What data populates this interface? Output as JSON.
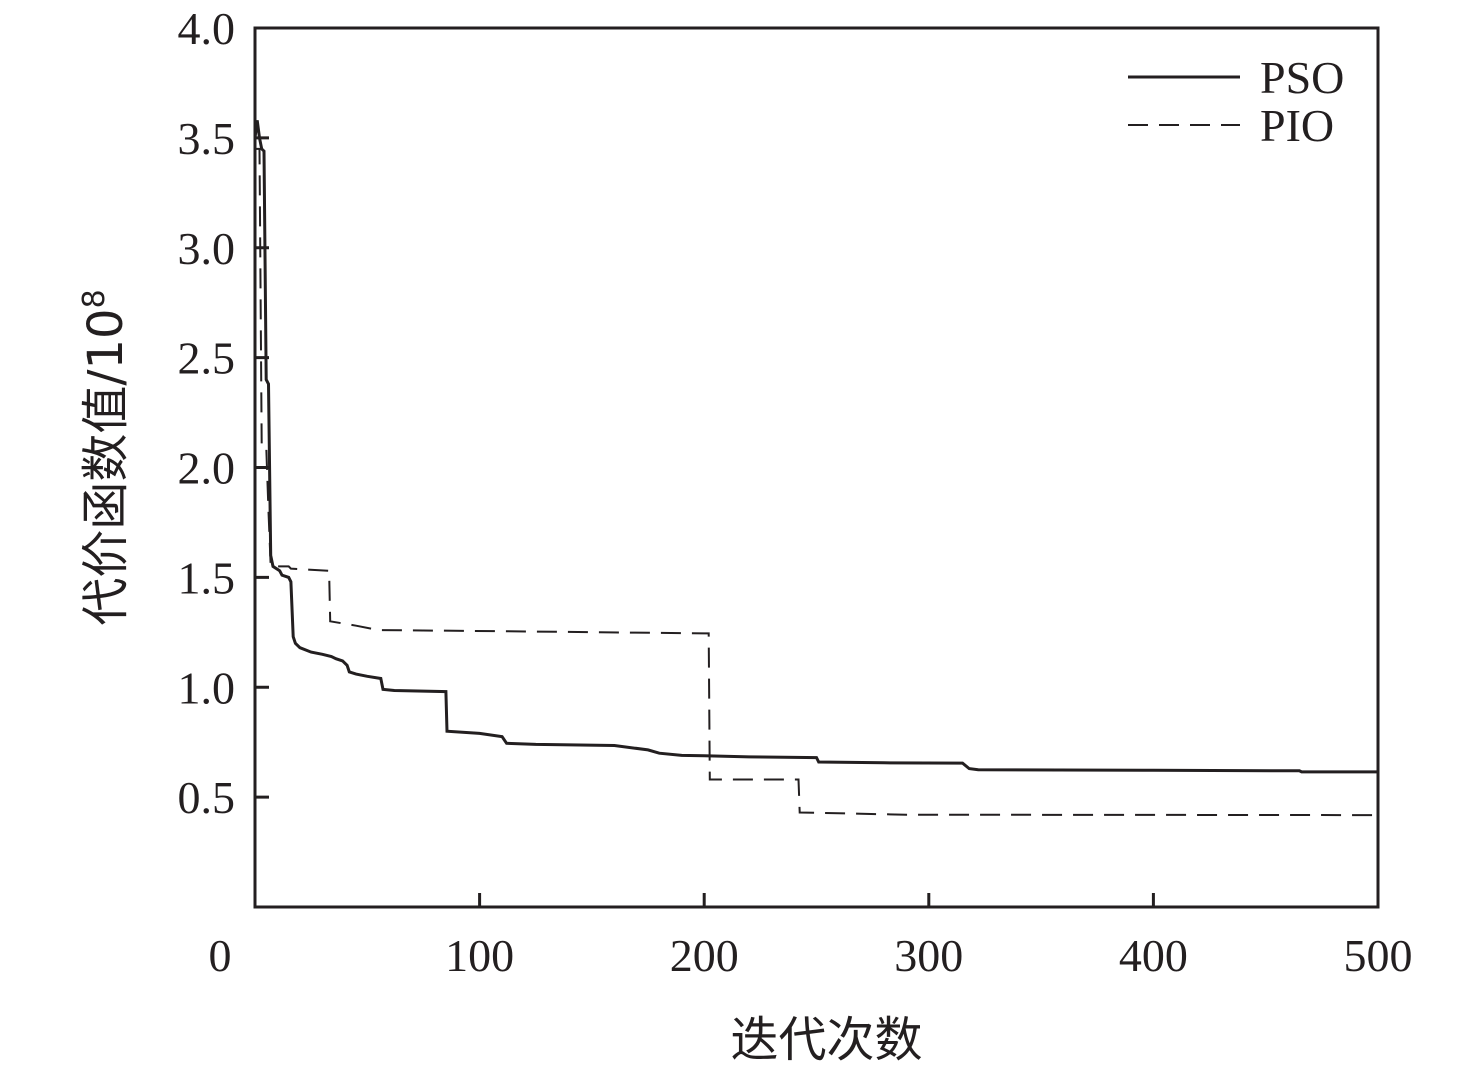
{
  "chart_data": {
    "type": "line",
    "title": "",
    "xlabel": "迭代次数",
    "ylabel_main": "代价函数值/10",
    "ylabel_exponent": "8",
    "xlim": [
      0,
      500
    ],
    "ylim": [
      0,
      4.0
    ],
    "x_ticks": [
      0,
      100,
      200,
      300,
      400,
      500
    ],
    "x_tick_labels": [
      "0",
      "100",
      "200",
      "300",
      "400",
      "500"
    ],
    "y_ticks": [
      0.5,
      1.0,
      1.5,
      2.0,
      2.5,
      3.0,
      3.5,
      4.0
    ],
    "y_tick_labels": [
      "0.5",
      "1.0",
      "1.5",
      "2.0",
      "2.5",
      "3.0",
      "3.5",
      "4.0"
    ],
    "grid": false,
    "legend_position": "top-right",
    "series": [
      {
        "name": "PSO",
        "style": "solid",
        "color": "#231f20",
        "points": [
          [
            0,
            3.5
          ],
          [
            1,
            3.58
          ],
          [
            2,
            3.5
          ],
          [
            3,
            3.45
          ],
          [
            4,
            3.44
          ],
          [
            5,
            2.4
          ],
          [
            6,
            2.38
          ],
          [
            7,
            1.6
          ],
          [
            8,
            1.55
          ],
          [
            11,
            1.53
          ],
          [
            12,
            1.51
          ],
          [
            15,
            1.5
          ],
          [
            16,
            1.48
          ],
          [
            17,
            1.23
          ],
          [
            18,
            1.2
          ],
          [
            20,
            1.18
          ],
          [
            25,
            1.16
          ],
          [
            30,
            1.15
          ],
          [
            34,
            1.14
          ],
          [
            36,
            1.13
          ],
          [
            39,
            1.12
          ],
          [
            41,
            1.1
          ],
          [
            42,
            1.07
          ],
          [
            45,
            1.06
          ],
          [
            50,
            1.05
          ],
          [
            56,
            1.04
          ],
          [
            57,
            0.99
          ],
          [
            62,
            0.985
          ],
          [
            85,
            0.98
          ],
          [
            85.5,
            0.8
          ],
          [
            100,
            0.79
          ],
          [
            110,
            0.775
          ],
          [
            112,
            0.745
          ],
          [
            125,
            0.74
          ],
          [
            160,
            0.735
          ],
          [
            175,
            0.715
          ],
          [
            180,
            0.7
          ],
          [
            190,
            0.69
          ],
          [
            200,
            0.688
          ],
          [
            220,
            0.683
          ],
          [
            250,
            0.68
          ],
          [
            251,
            0.66
          ],
          [
            280,
            0.656
          ],
          [
            315,
            0.655
          ],
          [
            318,
            0.63
          ],
          [
            322,
            0.625
          ],
          [
            400,
            0.622
          ],
          [
            465,
            0.62
          ],
          [
            466,
            0.615
          ],
          [
            500,
            0.615
          ]
        ]
      },
      {
        "name": "PIO",
        "style": "dashed",
        "color": "#231f20",
        "points": [
          [
            0,
            3.45
          ],
          [
            2,
            3.45
          ],
          [
            3,
            2.1
          ],
          [
            5,
            2.1
          ],
          [
            6,
            1.8
          ],
          [
            7,
            1.55
          ],
          [
            15,
            1.55
          ],
          [
            16,
            1.54
          ],
          [
            33,
            1.53
          ],
          [
            33.5,
            1.3
          ],
          [
            45,
            1.28
          ],
          [
            55,
            1.26
          ],
          [
            110,
            1.255
          ],
          [
            200,
            1.245
          ],
          [
            202,
            1.245
          ],
          [
            202.5,
            0.58
          ],
          [
            242,
            0.58
          ],
          [
            242.5,
            0.43
          ],
          [
            290,
            0.42
          ],
          [
            500,
            0.418
          ]
        ]
      }
    ]
  }
}
